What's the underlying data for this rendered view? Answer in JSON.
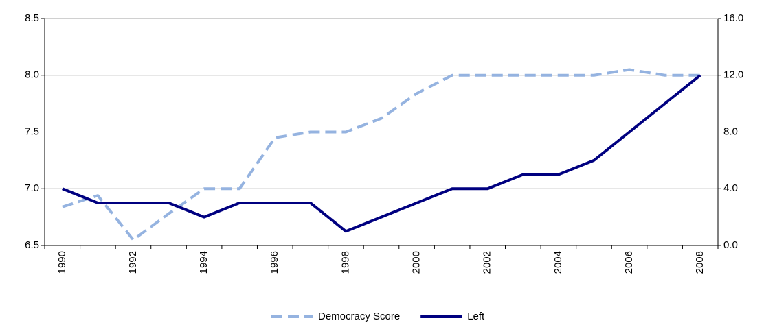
{
  "chart_data": {
    "type": "line",
    "categories": [
      "1990",
      null,
      "1992",
      null,
      "1994",
      null,
      "1996",
      null,
      "1998",
      null,
      "2000",
      null,
      "2002",
      null,
      "2004",
      null,
      "2006",
      null,
      "2008"
    ],
    "series": [
      {
        "name": "Democracy Score",
        "color": "#95b3e0",
        "dash": true,
        "axis": "y",
        "values": [
          6.84,
          6.94,
          6.55,
          6.78,
          7.0,
          7.0,
          7.45,
          7.5,
          7.5,
          7.62,
          7.84,
          8.0,
          8.0,
          8.0,
          8.0,
          8.0,
          8.05,
          8.0,
          8.0
        ]
      },
      {
        "name": "Left",
        "color": "#000080",
        "dash": false,
        "axis": "y2",
        "values": [
          4,
          3,
          3,
          3,
          2,
          3,
          3,
          3,
          1,
          2,
          3,
          4,
          4,
          5,
          5,
          6,
          8,
          10,
          12
        ]
      }
    ],
    "ylim": [
      6.5,
      8.5
    ],
    "yticks": [
      6.5,
      {
        "value": 7,
        "label": "7.0"
      },
      7.5,
      {
        "value": 8,
        "label": "8.0"
      },
      8.5
    ],
    "y2lim": [
      0,
      16
    ],
    "y2ticks": [
      {
        "value": 0,
        "label": "0.0"
      },
      {
        "value": 4,
        "label": "4.0"
      },
      {
        "value": 8,
        "label": "8.0"
      },
      {
        "value": 12,
        "label": "12.0"
      },
      {
        "value": 16,
        "label": "16.0"
      }
    ],
    "grid": true,
    "legend": "bottom"
  }
}
